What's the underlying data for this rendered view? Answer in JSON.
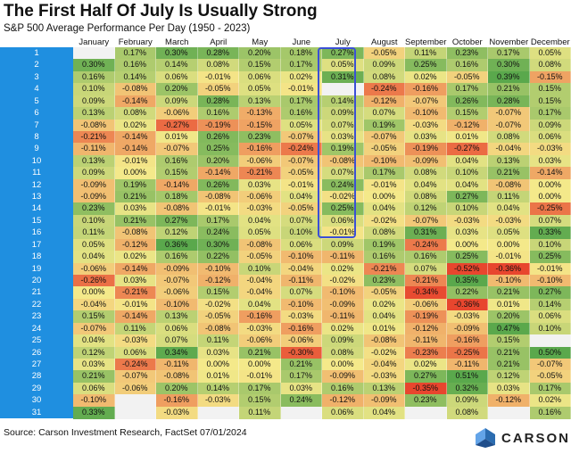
{
  "header": {
    "title": "The First Half Of July Is Usually Strong",
    "subtitle": "S&P 500 Average Performance Per Day (1950 - 2023)"
  },
  "footer": {
    "source": "Source: Carson Investment Research, FactSet 07/01/2024",
    "logo_text": "CARSON"
  },
  "chart_data": {
    "type": "heatmap",
    "title": "The First Half Of July Is Usually Strong",
    "subtitle": "S&P 500 Average Performance Per Day (1950 - 2023)",
    "columns": [
      "January",
      "February",
      "March",
      "April",
      "May",
      "June",
      "July",
      "August",
      "September",
      "October",
      "November",
      "December"
    ],
    "rows": [
      "1",
      "2",
      "3",
      "4",
      "5",
      "6",
      "7",
      "8",
      "9",
      "10",
      "11",
      "12",
      "13",
      "14",
      "15",
      "16",
      "17",
      "18",
      "19",
      "20",
      "21",
      "22",
      "23",
      "24",
      "25",
      "26",
      "27",
      "28",
      "29",
      "30",
      "31"
    ],
    "highlight": {
      "column": "July",
      "from_row": "1",
      "to_row": "15"
    },
    "color_scale": {
      "low": "#e8462e",
      "mid": "#f4e98a",
      "high": "#5aa84c"
    },
    "values": [
      [
        "",
        "0.17%",
        "0.30%",
        "0.28%",
        "0.20%",
        "0.18%",
        "0.27%",
        "-0.05%",
        "0.11%",
        "0.23%",
        "0.17%",
        "0.05%"
      ],
      [
        "0.30%",
        "0.16%",
        "0.14%",
        "0.08%",
        "0.15%",
        "0.17%",
        "0.05%",
        "0.09%",
        "0.25%",
        "0.16%",
        "0.30%",
        "0.08%"
      ],
      [
        "0.16%",
        "0.14%",
        "0.06%",
        "-0.01%",
        "0.06%",
        "0.02%",
        "0.31%",
        "0.08%",
        "0.02%",
        "-0.05%",
        "0.39%",
        "-0.15%"
      ],
      [
        "0.10%",
        "-0.08%",
        "0.20%",
        "-0.05%",
        "0.05%",
        "-0.01%",
        "",
        "-0.24%",
        "-0.16%",
        "0.17%",
        "0.21%",
        "0.15%"
      ],
      [
        "0.09%",
        "-0.14%",
        "0.09%",
        "0.28%",
        "0.13%",
        "0.17%",
        "0.14%",
        "-0.12%",
        "-0.07%",
        "0.26%",
        "0.28%",
        "0.15%"
      ],
      [
        "0.13%",
        "0.08%",
        "-0.06%",
        "0.16%",
        "-0.13%",
        "0.16%",
        "0.09%",
        "0.07%",
        "-0.10%",
        "0.15%",
        "-0.07%",
        "0.17%"
      ],
      [
        "-0.08%",
        "0.02%",
        "-0.27%",
        "-0.19%",
        "-0.15%",
        "0.05%",
        "0.07%",
        "0.19%",
        "-0.03%",
        "-0.12%",
        "-0.07%",
        "0.09%"
      ],
      [
        "-0.21%",
        "-0.14%",
        "0.01%",
        "0.26%",
        "0.23%",
        "-0.07%",
        "0.03%",
        "-0.07%",
        "0.03%",
        "0.01%",
        "0.08%",
        "0.06%"
      ],
      [
        "-0.11%",
        "-0.14%",
        "-0.07%",
        "0.25%",
        "-0.16%",
        "-0.24%",
        "0.19%",
        "-0.05%",
        "-0.19%",
        "-0.27%",
        "-0.04%",
        "-0.03%"
      ],
      [
        "0.13%",
        "-0.01%",
        "0.16%",
        "0.20%",
        "-0.06%",
        "-0.07%",
        "-0.08%",
        "-0.10%",
        "-0.09%",
        "0.04%",
        "0.13%",
        "0.03%"
      ],
      [
        "0.09%",
        "0.00%",
        "0.15%",
        "-0.14%",
        "-0.21%",
        "-0.05%",
        "0.07%",
        "0.17%",
        "0.08%",
        "0.10%",
        "0.21%",
        "-0.14%"
      ],
      [
        "-0.09%",
        "0.19%",
        "-0.14%",
        "0.26%",
        "0.03%",
        "-0.01%",
        "0.24%",
        "-0.01%",
        "0.04%",
        "0.04%",
        "-0.08%",
        "0.00%"
      ],
      [
        "-0.09%",
        "0.21%",
        "0.18%",
        "-0.08%",
        "-0.06%",
        "0.04%",
        "-0.02%",
        "0.00%",
        "0.08%",
        "0.27%",
        "0.11%",
        "0.00%"
      ],
      [
        "0.23%",
        "0.03%",
        "-0.08%",
        "-0.01%",
        "-0.03%",
        "-0.05%",
        "0.25%",
        "0.04%",
        "0.12%",
        "0.10%",
        "0.04%",
        "-0.25%"
      ],
      [
        "0.10%",
        "0.21%",
        "0.27%",
        "0.17%",
        "0.04%",
        "0.07%",
        "0.06%",
        "-0.02%",
        "-0.07%",
        "-0.03%",
        "-0.03%",
        "0.07%"
      ],
      [
        "0.11%",
        "-0.08%",
        "0.12%",
        "0.24%",
        "0.05%",
        "0.10%",
        "-0.01%",
        "0.08%",
        "0.31%",
        "0.03%",
        "0.05%",
        "0.33%"
      ],
      [
        "0.05%",
        "-0.12%",
        "0.36%",
        "0.30%",
        "-0.08%",
        "0.06%",
        "0.09%",
        "0.19%",
        "-0.24%",
        "0.00%",
        "0.00%",
        "0.10%"
      ],
      [
        "0.04%",
        "0.02%",
        "0.16%",
        "0.22%",
        "-0.05%",
        "-0.10%",
        "-0.11%",
        "0.16%",
        "0.16%",
        "0.25%",
        "-0.01%",
        "0.25%"
      ],
      [
        "-0.06%",
        "-0.14%",
        "-0.09%",
        "-0.10%",
        "0.10%",
        "-0.04%",
        "0.02%",
        "-0.21%",
        "0.07%",
        "-0.52%",
        "-0.36%",
        "-0.01%"
      ],
      [
        "-0.26%",
        "0.03%",
        "-0.07%",
        "-0.12%",
        "-0.04%",
        "-0.11%",
        "-0.02%",
        "0.23%",
        "-0.21%",
        "0.35%",
        "-0.10%",
        "-0.10%"
      ],
      [
        "0.00%",
        "-0.21%",
        "-0.06%",
        "0.15%",
        "-0.04%",
        "0.07%",
        "-0.10%",
        "-0.05%",
        "-0.34%",
        "0.22%",
        "0.21%",
        "0.27%"
      ],
      [
        "-0.04%",
        "-0.01%",
        "-0.10%",
        "-0.02%",
        "0.04%",
        "-0.10%",
        "-0.09%",
        "0.02%",
        "-0.06%",
        "-0.36%",
        "0.01%",
        "0.14%"
      ],
      [
        "0.15%",
        "-0.14%",
        "0.13%",
        "-0.05%",
        "-0.16%",
        "-0.03%",
        "-0.11%",
        "0.04%",
        "-0.19%",
        "-0.03%",
        "0.20%",
        "0.06%"
      ],
      [
        "-0.07%",
        "0.11%",
        "0.06%",
        "-0.08%",
        "-0.03%",
        "-0.16%",
        "0.02%",
        "0.01%",
        "-0.12%",
        "-0.09%",
        "0.47%",
        "0.10%"
      ],
      [
        "0.04%",
        "-0.03%",
        "0.07%",
        "0.11%",
        "-0.06%",
        "-0.06%",
        "0.09%",
        "-0.08%",
        "-0.11%",
        "-0.16%",
        "0.15%",
        ""
      ],
      [
        "0.12%",
        "0.06%",
        "0.34%",
        "0.03%",
        "0.21%",
        "-0.30%",
        "0.08%",
        "-0.02%",
        "-0.23%",
        "-0.25%",
        "0.21%",
        "0.50%"
      ],
      [
        "0.03%",
        "-0.24%",
        "-0.11%",
        "0.00%",
        "0.00%",
        "0.21%",
        "0.00%",
        "-0.04%",
        "0.02%",
        "-0.11%",
        "0.21%",
        "-0.07%"
      ],
      [
        "0.21%",
        "-0.07%",
        "-0.08%",
        "0.01%",
        "-0.01%",
        "0.17%",
        "-0.09%",
        "-0.03%",
        "0.27%",
        "0.51%",
        "0.12%",
        "-0.05%"
      ],
      [
        "0.06%",
        "-0.06%",
        "0.20%",
        "0.14%",
        "0.17%",
        "0.03%",
        "0.16%",
        "0.13%",
        "-0.35%",
        "0.32%",
        "0.03%",
        "0.17%"
      ],
      [
        "-0.10%",
        "",
        "-0.16%",
        "-0.03%",
        "0.15%",
        "0.24%",
        "-0.12%",
        "-0.09%",
        "0.23%",
        "0.09%",
        "-0.12%",
        "0.02%"
      ],
      [
        "0.33%",
        "",
        "-0.03%",
        "",
        "0.11%",
        "",
        "0.06%",
        "0.04%",
        "",
        "0.08%",
        "",
        "0.16%"
      ]
    ]
  }
}
